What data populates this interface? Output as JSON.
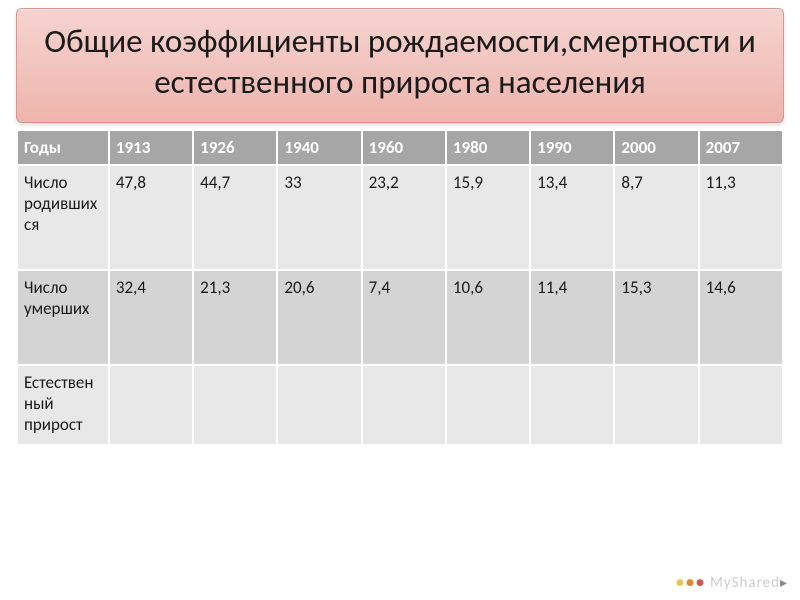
{
  "title": "Общие коэффициенты рождаемости,смертности и естественного прироста населения",
  "table": {
    "type": "table",
    "background_header": "#a6a6a6",
    "background_even": "#e8e8e8",
    "background_odd": "#d4d4d4",
    "border_color": "#ffffff",
    "text_color": "#1a1a1a",
    "header_text_color": "#ffffff",
    "fontsize": 17,
    "columns": [
      "Годы",
      "1913",
      "1926",
      "1940",
      "1960",
      "1980",
      "1990",
      "2000",
      "2007"
    ],
    "rows": [
      {
        "label": "Число родившихся",
        "values": [
          "47,8",
          "44,7",
          "33",
          "23,2",
          "15,9",
          "13,4",
          "8,7",
          "11,3"
        ]
      },
      {
        "label": "Число умерших",
        "values": [
          "32,4",
          "21,3",
          "20,6",
          "7,4",
          "10,6",
          "11,4",
          "15,3",
          "14,6"
        ]
      },
      {
        "label": "Естественный прирост",
        "values": [
          "",
          "",
          "",
          "",
          "",
          "",
          "",
          ""
        ]
      }
    ]
  },
  "title_style": {
    "gradient_top": "#f6d4d0",
    "gradient_mid": "#f2c4bf",
    "gradient_bottom": "#eeb4ad",
    "border_color": "#d89890",
    "fontsize": 33,
    "text_color": "#1a1a1a"
  },
  "watermark": {
    "text_prefix": "M",
    "text_suffix": "yShared"
  }
}
